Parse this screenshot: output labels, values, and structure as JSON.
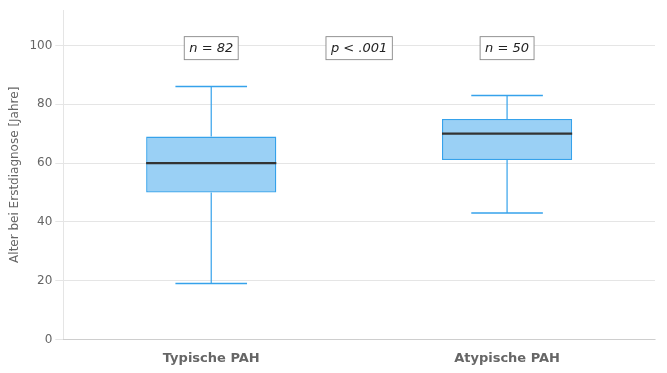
{
  "chart_data": {
    "type": "box",
    "categories": [
      "Typische PAH",
      "Atypische PAH"
    ],
    "values": [
      {
        "min": 19,
        "q1": 50,
        "median": 60,
        "q3": 69,
        "max": 86
      },
      {
        "min": 43,
        "q1": 61,
        "median": 70,
        "q3": 75,
        "max": 83
      }
    ],
    "ylabel": "Alter bei Erstdiagnose [Jahre]",
    "ylim": [
      0,
      112
    ],
    "yticks": [
      0,
      20,
      40,
      60,
      80,
      100
    ],
    "grid": true,
    "annotations": [
      {
        "text": "n = 82",
        "y": 103
      },
      {
        "text": "p < .001",
        "y": 103
      },
      {
        "text": "n = 50",
        "y": 103
      }
    ]
  }
}
